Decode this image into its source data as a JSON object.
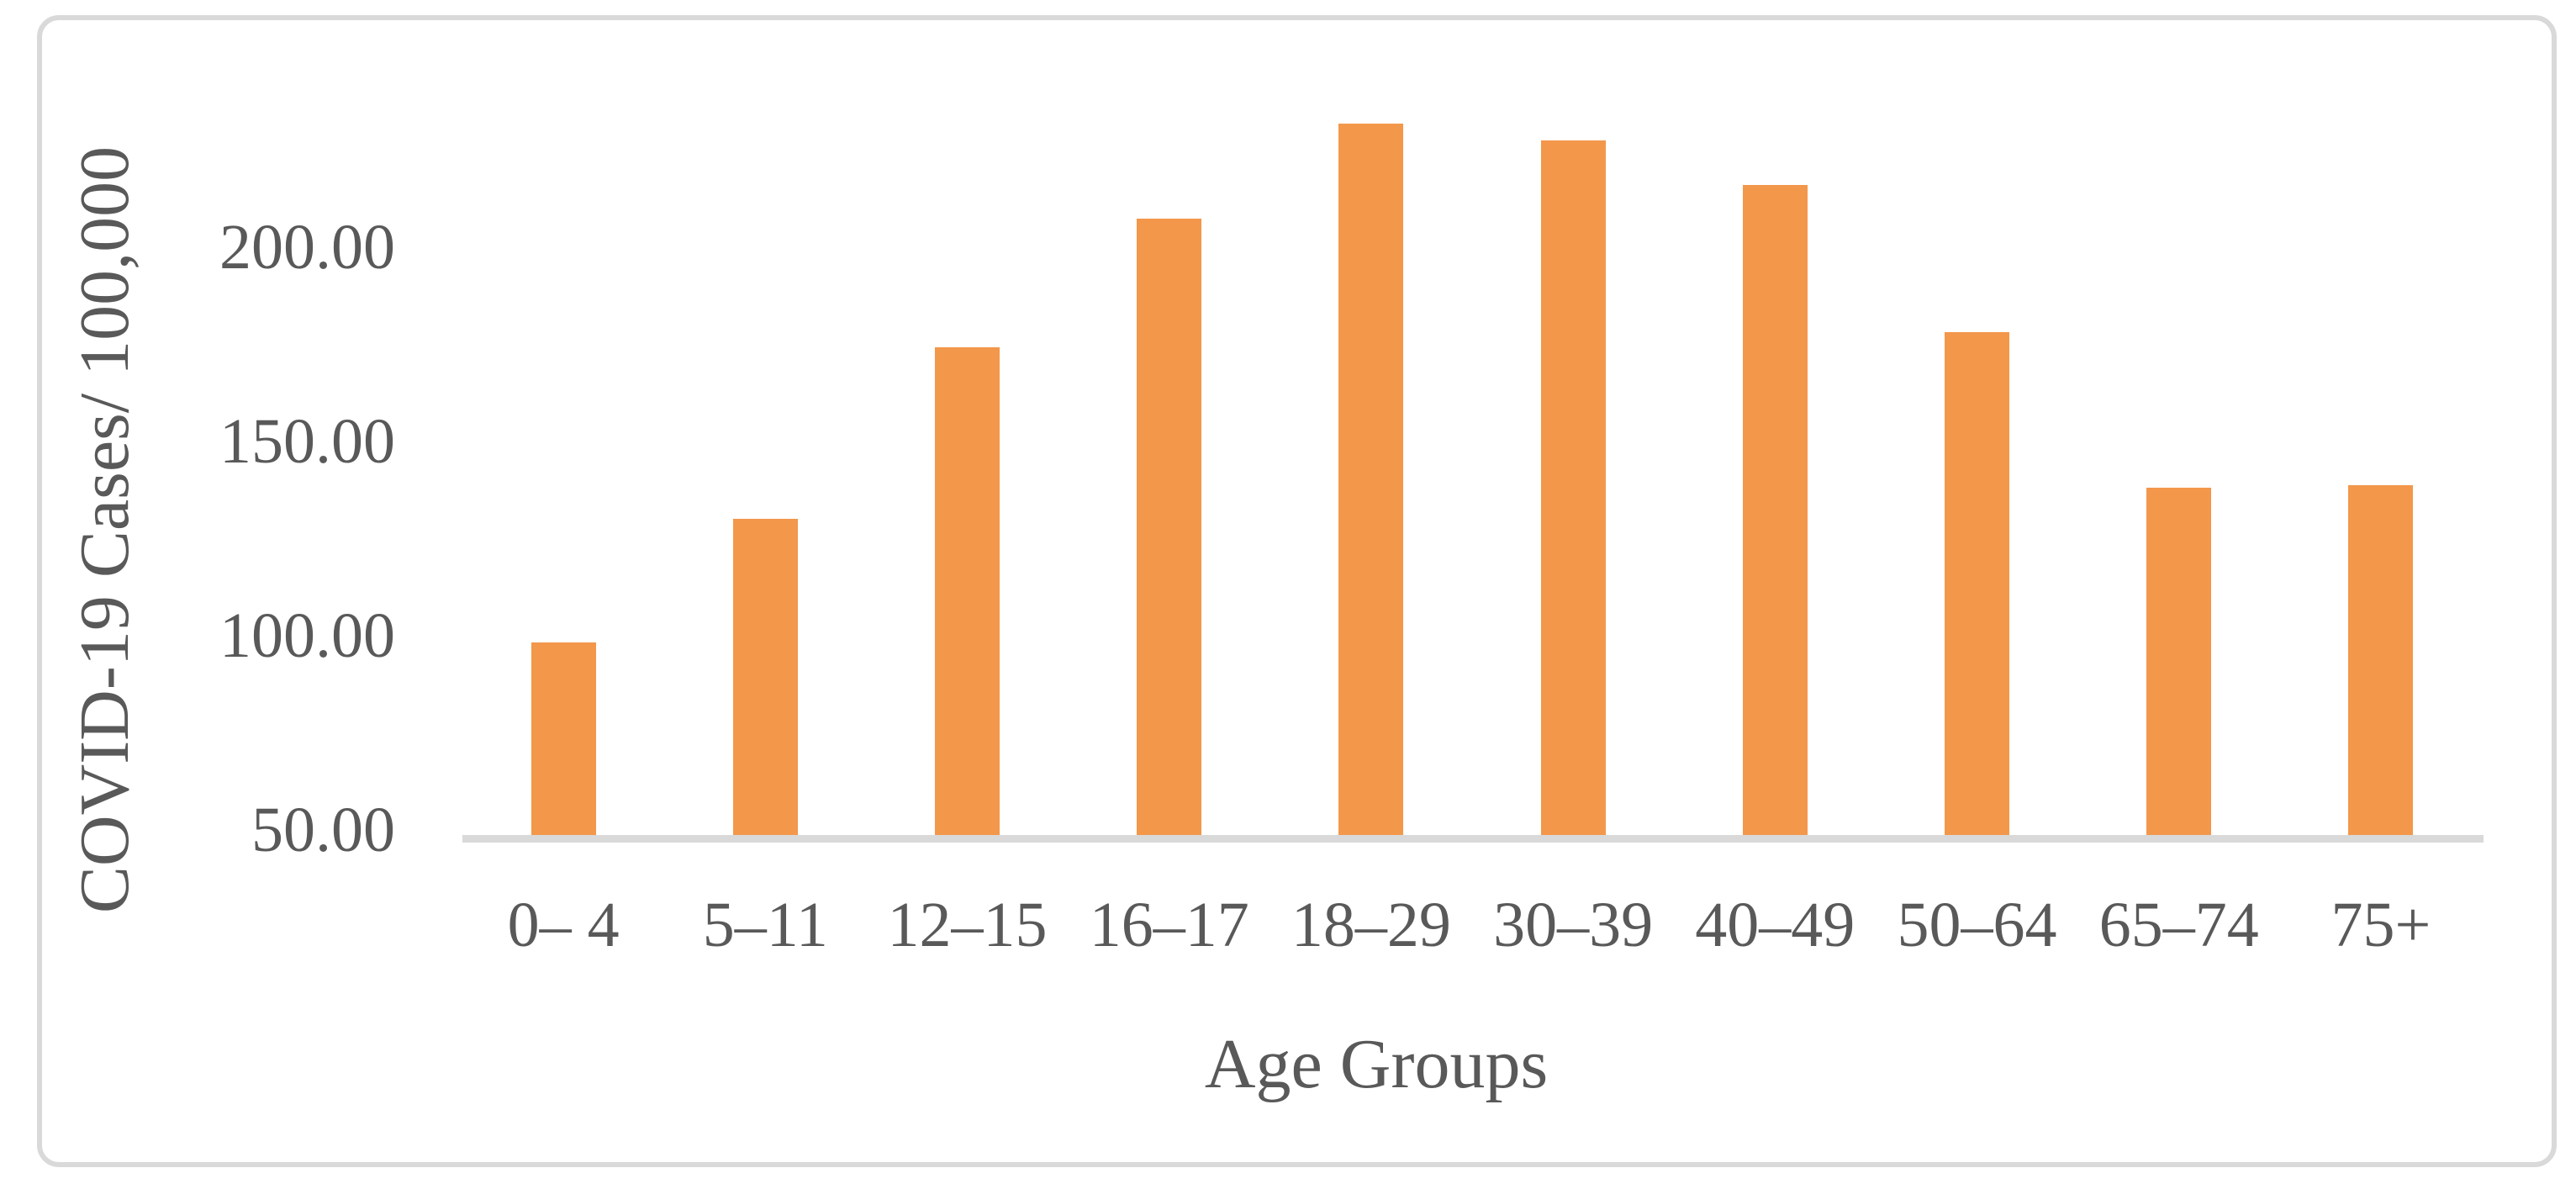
{
  "figure": {
    "background_color": "#FFFFFF",
    "border_color": "#D9D9D9"
  },
  "chart_data": {
    "type": "bar",
    "title": "",
    "xlabel": "Age Groups",
    "ylabel": "COVID-19 Cases/ 100,000",
    "categories": [
      "0– 4",
      "5–11",
      "12–15",
      "16–17",
      "18–29",
      "30–39",
      "40–49",
      "50–64",
      "65–74",
      "75+"
    ],
    "values": [
      99.6,
      131.4,
      175.5,
      208.7,
      233.1,
      228.8,
      217.3,
      179.4,
      139.4,
      140.0
    ],
    "series_name": "COVID-19 Cases per 100,000",
    "y_ticks": [
      {
        "value": 200,
        "label": "200.00"
      },
      {
        "value": 150,
        "label": "150.00"
      },
      {
        "value": 100,
        "label": "100.00"
      },
      {
        "value": 50,
        "label": "50.00"
      }
    ],
    "ylim": [
      50,
      250
    ],
    "grid": false,
    "legend": false,
    "bar_color": "#F3974B",
    "axis_line_color": "#D9D9D9",
    "text_color": "#595959"
  }
}
